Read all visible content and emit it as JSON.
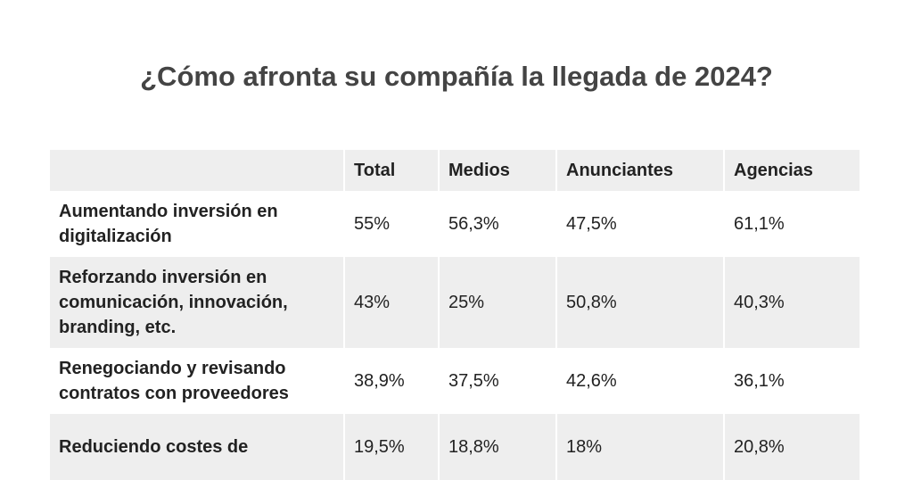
{
  "header": {
    "title": "¿Cómo afronta su compañía la llegada de 2024?"
  },
  "table": {
    "columns": [
      "Total",
      "Medios",
      "Anunciantes",
      "Agencias"
    ],
    "rows": [
      {
        "label": "Aumentando inversión en digitalización",
        "values": [
          "55%",
          "56,3%",
          "47,5%",
          "61,1%"
        ]
      },
      {
        "label": "Reforzando inversión en comunicación, innovación, branding, etc.",
        "values": [
          "43%",
          "25%",
          "50,8%",
          "40,3%"
        ]
      },
      {
        "label": "Renegociando y revisando contratos con proveedores",
        "values": [
          "38,9%",
          "37,5%",
          "42,6%",
          "36,1%"
        ]
      },
      {
        "label": "Reduciendo costes de",
        "values": [
          "19,5%",
          "18,8%",
          "18%",
          "20,8%"
        ]
      }
    ]
  }
}
